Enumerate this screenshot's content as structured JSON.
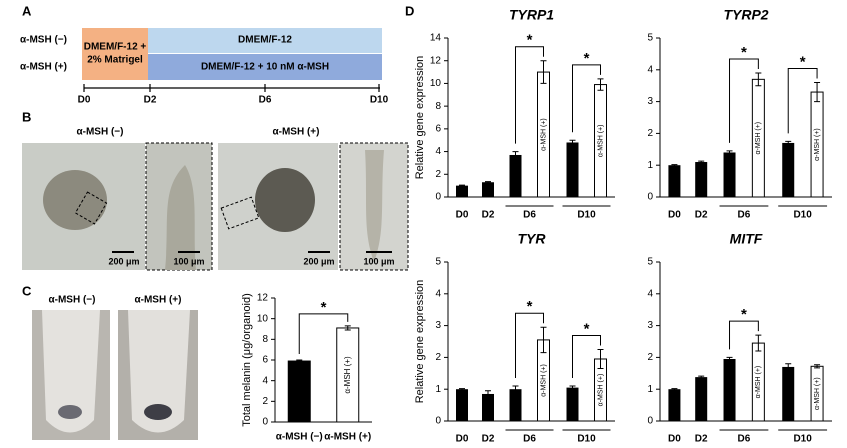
{
  "panel_labels": [
    "A",
    "B",
    "C",
    "D"
  ],
  "panel_a": {
    "rows": [
      "α-MSH (−)",
      "α-MSH (+)"
    ],
    "stage1": [
      "DMEM/F-12 +",
      "2% Matrigel"
    ],
    "control_medium": "DMEM/F-12",
    "treated_medium": "DMEM/F-12 + 10 nM α-MSH",
    "days": [
      "D0",
      "D2",
      "D6",
      "D10"
    ]
  },
  "panel_b": {
    "conditions": [
      "α-MSH (−)",
      "α-MSH (+)"
    ],
    "scale_bars": [
      "200 μm",
      "100 μm",
      "200 μm",
      "100 μm"
    ]
  },
  "panel_c": {
    "tube_labels": [
      "α-MSH (−)",
      "α-MSH (+)"
    ]
  },
  "chart_data": [
    {
      "type": "bar",
      "ylabel": "Total melanin (μg/organoid)",
      "categories": [
        "α-MSH (−)",
        "α-MSH (+)"
      ],
      "values": [
        5.9,
        9.1
      ],
      "errors": [
        0.1,
        0.2
      ],
      "bar_colors": [
        "#000000",
        "#ffffff"
      ],
      "inner_labels": [
        null,
        "α-MSH (+)"
      ],
      "significance": "*",
      "ylim": [
        0,
        12
      ],
      "yticks": [
        0,
        2,
        4,
        6,
        8,
        10,
        12
      ]
    },
    {
      "type": "bar",
      "title": "TYRP1",
      "ylabel": "Relative gene expression",
      "categories": [
        "D0",
        "D2",
        "D6",
        "D10"
      ],
      "values": [
        1.0,
        1.3,
        3.7,
        4.8
      ],
      "errors": [
        0.05,
        0.05,
        0.3,
        0.2
      ],
      "treated_values": [
        null,
        null,
        11.0,
        9.9
      ],
      "treated_errors": [
        null,
        null,
        1.0,
        0.5
      ],
      "inner_label": "α-MSH (+)",
      "significant": [
        null,
        null,
        "*",
        "*"
      ],
      "ylim": [
        0,
        14
      ],
      "yticks": [
        0,
        2,
        4,
        6,
        8,
        10,
        12,
        14
      ]
    },
    {
      "type": "bar",
      "title": "TYRP2",
      "categories": [
        "D0",
        "D2",
        "D6",
        "D10"
      ],
      "values": [
        1.0,
        1.1,
        1.4,
        1.7
      ],
      "errors": [
        0.02,
        0.03,
        0.05,
        0.05
      ],
      "treated_values": [
        null,
        null,
        3.7,
        3.3
      ],
      "treated_errors": [
        null,
        null,
        0.2,
        0.3
      ],
      "inner_label": "α-MSH (+)",
      "significant": [
        null,
        null,
        "*",
        "*"
      ],
      "ylim": [
        0,
        5
      ],
      "yticks": [
        0,
        1,
        2,
        3,
        4,
        5
      ]
    },
    {
      "type": "bar",
      "title": "TYR",
      "ylabel": "Relative gene expression",
      "categories": [
        "D0",
        "D2",
        "D6",
        "D10"
      ],
      "values": [
        1.0,
        0.85,
        1.0,
        1.05
      ],
      "errors": [
        0.02,
        0.1,
        0.1,
        0.05
      ],
      "treated_values": [
        null,
        null,
        2.55,
        1.95
      ],
      "treated_errors": [
        null,
        null,
        0.4,
        0.3
      ],
      "inner_label": "α-MSH (+)",
      "significant": [
        null,
        null,
        "*",
        "*"
      ],
      "ylim": [
        0,
        5
      ],
      "yticks": [
        0,
        1,
        2,
        3,
        4,
        5
      ]
    },
    {
      "type": "bar",
      "title": "MITF",
      "categories": [
        "D0",
        "D2",
        "D6",
        "D10"
      ],
      "values": [
        1.0,
        1.38,
        1.95,
        1.7
      ],
      "errors": [
        0.02,
        0.03,
        0.05,
        0.1
      ],
      "treated_values": [
        null,
        null,
        2.45,
        1.72
      ],
      "treated_errors": [
        null,
        null,
        0.25,
        0.05
      ],
      "inner_label": "α-MSH (+)",
      "significant": [
        null,
        null,
        "*",
        null
      ],
      "ylim": [
        0,
        5
      ],
      "yticks": [
        0,
        1,
        2,
        3,
        4,
        5
      ]
    }
  ]
}
